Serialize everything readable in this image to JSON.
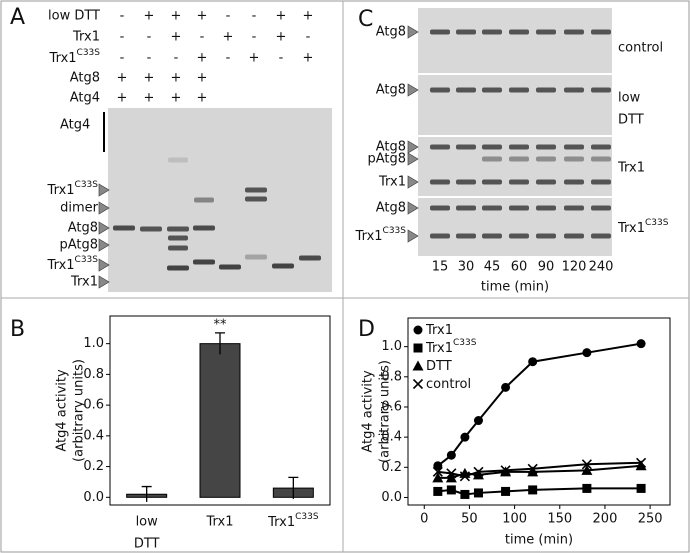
{
  "panel_labels": [
    "A",
    "B",
    "C",
    "D"
  ],
  "gel_a": {
    "conditions": [
      {
        "name": "low DTT",
        "marks": [
          "-",
          "+",
          "+",
          "+",
          "-",
          "-",
          "+",
          "+"
        ]
      },
      {
        "name": "Trx1",
        "marks": [
          "-",
          "-",
          "+",
          "-",
          "+",
          "-",
          "+",
          "-"
        ]
      },
      {
        "name": {
          "text": "Trx1",
          "sup": "C33S"
        },
        "marks": [
          "-",
          "-",
          "-",
          "+",
          "-",
          "+",
          "-",
          "+"
        ]
      },
      {
        "name": "Atg8",
        "marks": [
          "+",
          "+",
          "+",
          "+"
        ]
      },
      {
        "name": "Atg4",
        "marks": [
          "+",
          "+",
          "+",
          "+"
        ]
      }
    ],
    "bands": [
      "Atg4",
      {
        "text": "Trx1",
        "sup": "C33S"
      },
      "dimer",
      "Atg8",
      "pAtg8",
      {
        "text": "Trx1",
        "sup": "C33S"
      },
      "Trx1"
    ]
  },
  "gel_c": {
    "strips": [
      {
        "condition": "control",
        "bands": [
          "Atg8"
        ]
      },
      {
        "condition": [
          "low",
          "DTT"
        ],
        "bands": [
          "Atg8"
        ]
      },
      {
        "condition": "Trx1",
        "bands": [
          "Atg8",
          "pAtg8",
          "Trx1"
        ]
      },
      {
        "condition": {
          "text": "Trx1",
          "sup": "C33S"
        },
        "bands": [
          "Atg8",
          {
            "text": "Trx1",
            "sup": "C33S"
          }
        ]
      }
    ],
    "times": [
      15,
      30,
      45,
      60,
      90,
      120,
      240
    ],
    "xlabel": "time (min)"
  },
  "chart_data": [
    {
      "type": "bar",
      "ylabel": [
        "Atg4 activity",
        "(arbitrary units)"
      ],
      "categories": [
        [
          "low",
          "DTT"
        ],
        "Trx1",
        {
          "text": "Trx1",
          "sup": "C33S"
        }
      ],
      "values": [
        0.02,
        1.0,
        0.06
      ],
      "errors": [
        0.05,
        0.07,
        0.07
      ],
      "significance": [
        null,
        "**",
        null
      ],
      "color": "#454545",
      "ylim": [
        -0.05,
        1.18
      ],
      "yticks": [
        {
          "value": 0,
          "label": "0.0"
        },
        0.2,
        0.4,
        0.6,
        0.8,
        {
          "value": 1,
          "label": "1.0"
        }
      ]
    },
    {
      "type": "scatter",
      "xlabel": "time (min)",
      "ylabel": [
        "Atg4 activity",
        "(arbitrary units)"
      ],
      "x": [
        15,
        30,
        45,
        60,
        90,
        120,
        180,
        240
      ],
      "series": [
        {
          "name": {
            "text": "Trx1"
          },
          "marker": "circle",
          "color": "#000000",
          "values": [
            0.21,
            0.28,
            0.4,
            0.51,
            0.73,
            0.9,
            0.96,
            1.02
          ]
        },
        {
          "name": {
            "text": "Trx1",
            "sup": "C33S"
          },
          "marker": "square",
          "color": "#000000",
          "values": [
            0.04,
            0.05,
            0.02,
            0.03,
            0.04,
            0.05,
            0.06,
            0.06
          ]
        },
        {
          "name": {
            "text": "DTT"
          },
          "marker": "triangle",
          "color": "#000000",
          "values": [
            0.13,
            0.13,
            0.16,
            0.15,
            0.17,
            0.17,
            0.18,
            0.21
          ]
        },
        {
          "name": {
            "text": "control"
          },
          "marker": "x",
          "color": "#000000",
          "values": [
            0.17,
            0.16,
            0.14,
            0.17,
            0.18,
            0.19,
            0.22,
            0.23
          ]
        }
      ],
      "legend": "upper left",
      "xlim": [
        -18,
        272
      ],
      "xticks": [
        0,
        50,
        100,
        150,
        200,
        250
      ],
      "ylim": [
        -0.05,
        1.19
      ],
      "yticks": [
        {
          "value": 0,
          "label": "0.0"
        },
        0.2,
        0.4,
        0.6,
        0.8,
        {
          "value": 1,
          "label": "1.0"
        }
      ]
    }
  ]
}
